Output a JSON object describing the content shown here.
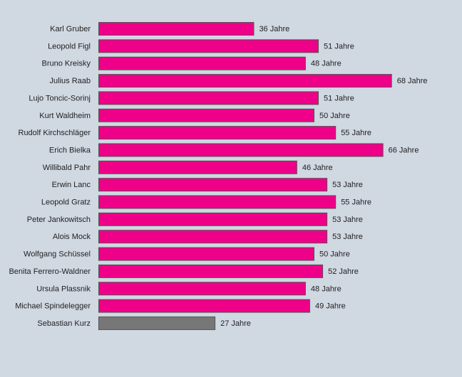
{
  "chart_data": {
    "type": "bar",
    "orientation": "horizontal",
    "title": "",
    "xlabel": "",
    "ylabel": "",
    "unit_suffix": " Jahre",
    "xlim": [
      0,
      75
    ],
    "grid": false,
    "legend": "none",
    "categories": [
      "Karl Gruber",
      "Leopold Figl",
      "Bruno Kreisky",
      "Julius Raab",
      "Lujo Toncic-Sorinj",
      "Kurt Waldheim",
      "Rudolf Kirchschläger",
      "Erich Bielka",
      "Willibald Pahr",
      "Erwin Lanc",
      "Leopold Gratz",
      "Peter Jankowitsch",
      "Alois Mock",
      "Wolfgang Schüssel",
      "Benita Ferrero-Waldner",
      "Ursula Plassnik",
      "Michael Spindelegger",
      "Sebastian Kurz"
    ],
    "values": [
      36,
      51,
      48,
      68,
      51,
      50,
      55,
      66,
      46,
      53,
      55,
      53,
      53,
      50,
      52,
      48,
      49,
      27
    ],
    "value_labels": [
      "36 Jahre",
      "51 Jahre",
      "48 Jahre",
      "68 Jahre",
      "51 Jahre",
      "50 Jahre",
      "55 Jahre",
      "66 Jahre",
      "46 Jahre",
      "53 Jahre",
      "55 Jahre",
      "53 Jahre",
      "53 Jahre",
      "50 Jahre",
      "52 Jahre",
      "48 Jahre",
      "49 Jahre",
      "27 Jahre"
    ],
    "colors": {
      "default_bar": "#ee0088",
      "highlight_bar": "#777777",
      "bar_border": "#555555",
      "background": "#d0d8e2",
      "text": "#222222"
    },
    "highlight_index": 17
  }
}
